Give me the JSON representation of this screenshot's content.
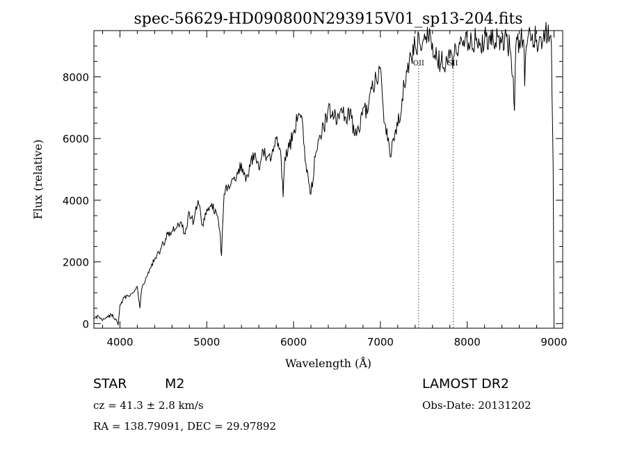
{
  "chart_data": {
    "type": "line",
    "title": "spec-56629-HD090800N293915V01_sp13-204.fits",
    "xlabel": "Wavelength (Å)",
    "ylabel": "Flux (relative)",
    "xlim": [
      3700,
      9100
    ],
    "ylim": [
      -150,
      9500
    ],
    "x_ticks": [
      4000,
      5000,
      6000,
      7000,
      8000,
      9000
    ],
    "y_ticks": [
      0,
      2000,
      4000,
      6000,
      8000
    ],
    "series": [
      {
        "x": [
          3700,
          3750,
          3800,
          3850,
          3900,
          3950,
          3980,
          4000,
          4050,
          4100,
          4150,
          4200,
          4230,
          4250,
          4300,
          4350,
          4400,
          4450,
          4500,
          4550,
          4600,
          4650,
          4700,
          4750,
          4800,
          4850,
          4900,
          4950,
          5000,
          5050,
          5100,
          5150,
          5170,
          5180,
          5200,
          5250,
          5300,
          5350,
          5400,
          5450,
          5500,
          5550,
          5600,
          5650,
          5700,
          5750,
          5800,
          5850,
          5880,
          5900,
          5950,
          6000,
          6050,
          6100,
          6150,
          6200,
          6250,
          6300,
          6350,
          6400,
          6450,
          6500,
          6550,
          6600,
          6650,
          6700,
          6750,
          6800,
          6850,
          6900,
          6950,
          7000,
          7050,
          7100,
          7120,
          7150,
          7200,
          7250,
          7300,
          7350,
          7400,
          7450,
          7500,
          7550,
          7600,
          7650,
          7700,
          7750,
          7800,
          7850,
          7900,
          7950,
          8000,
          8050,
          8100,
          8150,
          8200,
          8250,
          8300,
          8350,
          8400,
          8450,
          8500,
          8530,
          8545,
          8560,
          8600,
          8650,
          8662,
          8680,
          8700,
          8750,
          8800,
          8850,
          8900,
          8950,
          8970,
          8990,
          9000
        ],
        "y": [
          150,
          250,
          100,
          200,
          300,
          150,
          -50,
          600,
          850,
          900,
          1000,
          1200,
          500,
          1100,
          1500,
          1800,
          2100,
          2300,
          2600,
          2900,
          3000,
          3100,
          3300,
          2900,
          3600,
          3300,
          4000,
          3200,
          3700,
          3800,
          3700,
          3000,
          2200,
          3000,
          4200,
          4500,
          4700,
          4900,
          5200,
          4600,
          5100,
          5500,
          5000,
          5600,
          5400,
          5500,
          6000,
          5600,
          4100,
          5400,
          5700,
          6200,
          6700,
          6600,
          4900,
          4200,
          5400,
          6100,
          6300,
          7000,
          6900,
          6500,
          7000,
          6700,
          6900,
          6100,
          6300,
          7000,
          6800,
          7600,
          8000,
          8300,
          6500,
          5800,
          5400,
          6000,
          6400,
          7300,
          8200,
          8700,
          9000,
          9100,
          9200,
          9300,
          9100,
          8600,
          8500,
          8300,
          8600,
          8700,
          8900,
          9000,
          9100,
          9200,
          9200,
          9100,
          9200,
          9300,
          9200,
          9300,
          9200,
          9300,
          8800,
          8000,
          6900,
          9000,
          9200,
          9200,
          7700,
          9000,
          9300,
          9400,
          9200,
          9300,
          9400,
          9300,
          9000,
          5000,
          0
        ]
      }
    ],
    "line_markers": [
      {
        "label": "OII",
        "x": 7440
      },
      {
        "label": "SII",
        "x": 7840
      }
    ]
  },
  "info": {
    "class_label": "STAR",
    "subclass_label": "M2",
    "cz_text": "cz = 41.3 ± 2.8 km/s",
    "coords_text": "RA = 138.79091, DEC =  29.97892",
    "survey_label": "LAMOST DR2",
    "obs_date_text": "Obs-Date: 20131202"
  }
}
